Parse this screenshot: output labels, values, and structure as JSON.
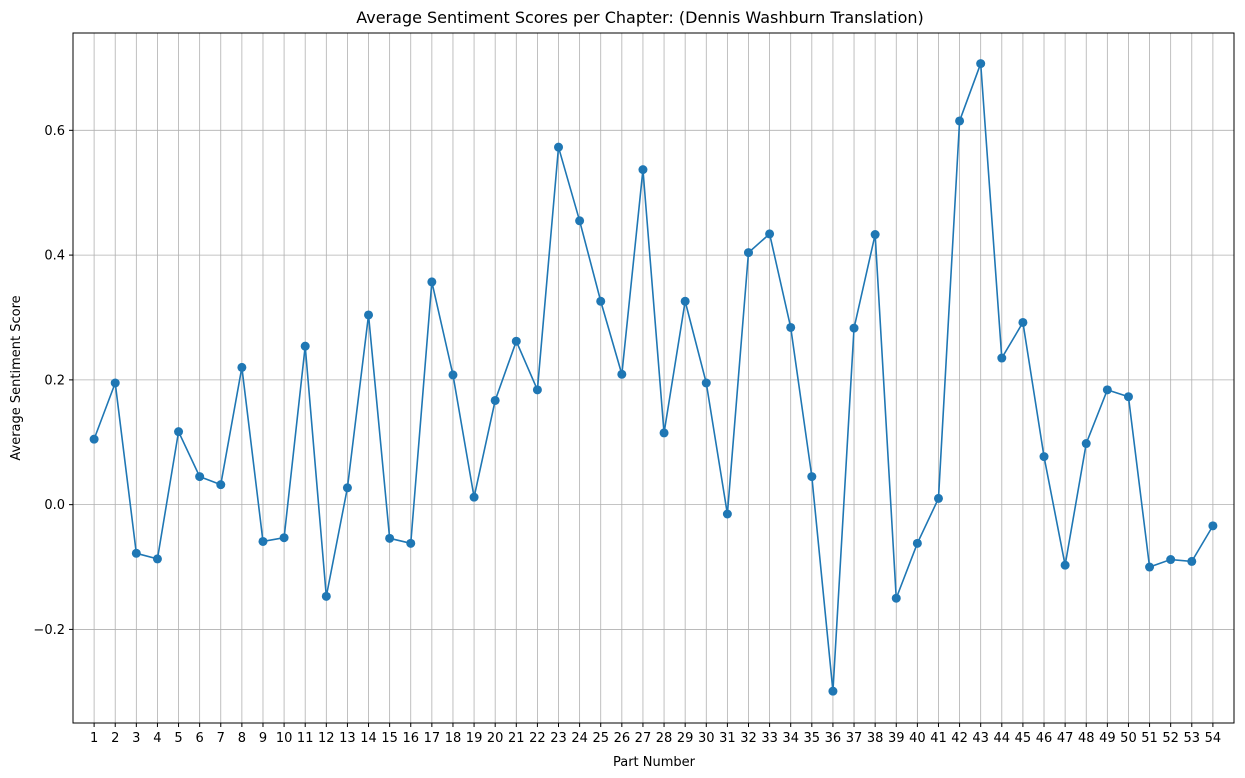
{
  "chart_data": {
    "type": "line",
    "title": "Average Sentiment Scores per Chapter: (Dennis Washburn Translation)",
    "xlabel": "Part Number",
    "ylabel": "Average Sentiment Score",
    "x": [
      1,
      2,
      3,
      4,
      5,
      6,
      7,
      8,
      9,
      10,
      11,
      12,
      13,
      14,
      15,
      16,
      17,
      18,
      19,
      20,
      21,
      22,
      23,
      24,
      25,
      26,
      27,
      28,
      29,
      30,
      31,
      32,
      33,
      34,
      35,
      36,
      37,
      38,
      39,
      40,
      41,
      42,
      43,
      44,
      45,
      46,
      47,
      48,
      49,
      50,
      51,
      52,
      53,
      54
    ],
    "series": [
      {
        "values": [
          0.105,
          0.195,
          -0.078,
          -0.087,
          0.117,
          0.045,
          0.032,
          0.22,
          -0.059,
          -0.053,
          0.254,
          -0.147,
          0.027,
          0.304,
          -0.054,
          -0.062,
          0.357,
          0.208,
          0.012,
          0.167,
          0.262,
          0.184,
          0.573,
          0.455,
          0.326,
          0.209,
          0.537,
          0.115,
          0.326,
          0.195,
          -0.015,
          0.404,
          0.434,
          0.284,
          0.045,
          -0.299,
          0.283,
          0.433,
          -0.15,
          -0.062,
          0.01,
          0.615,
          0.707,
          0.235,
          0.292,
          0.077,
          -0.097,
          0.098,
          0.184,
          0.173,
          -0.1,
          -0.088,
          -0.091,
          -0.034
        ],
        "color": "#1f77b4"
      }
    ],
    "yticks": [
      -0.2,
      0.0,
      0.2,
      0.4,
      0.6
    ],
    "ytick_labels": [
      "−0.2",
      "0.0",
      "0.2",
      "0.4",
      "0.6"
    ],
    "ylim": [
      -0.35,
      0.756
    ],
    "xlim": [
      0,
      55
    ],
    "grid": true,
    "legend": "none"
  }
}
